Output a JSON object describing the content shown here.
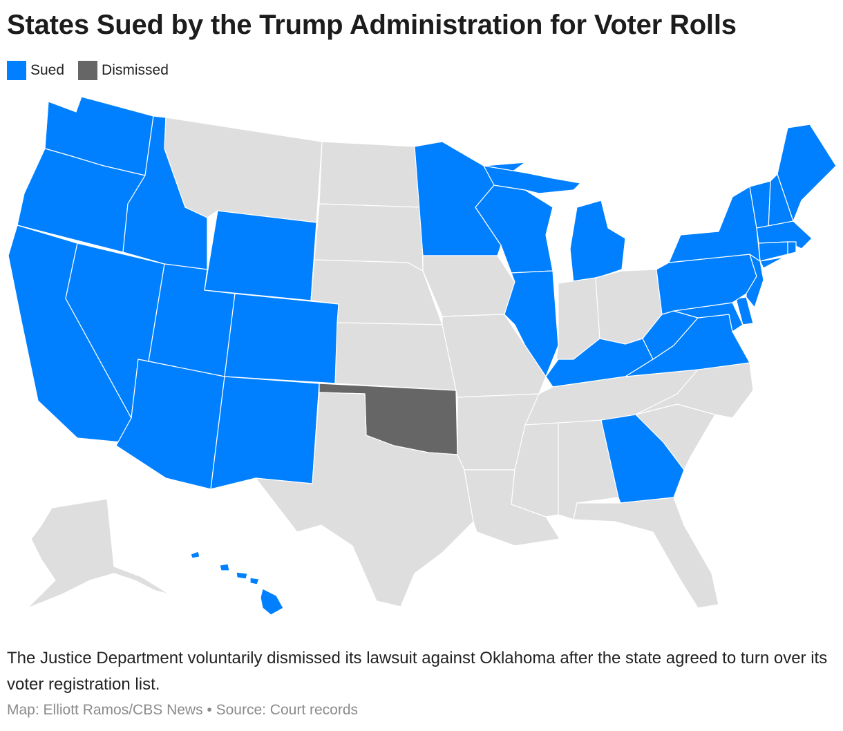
{
  "title": "States Sued by the Trump Administration for Voter Rolls",
  "legend": {
    "items": [
      {
        "label": "Sued",
        "color": "#0080ff"
      },
      {
        "label": "Dismissed",
        "color": "#666666"
      }
    ]
  },
  "colors": {
    "sued": "#0080ff",
    "dismissed": "#666666",
    "none": "#dedede"
  },
  "map": {
    "sued_states": [
      "WA",
      "OR",
      "CA",
      "NV",
      "ID",
      "UT",
      "AZ",
      "WY",
      "CO",
      "NM",
      "MN",
      "WI",
      "MI",
      "IL",
      "KY",
      "WV",
      "VA",
      "MD",
      "DE",
      "NJ",
      "PA",
      "NY",
      "CT",
      "RI",
      "MA",
      "VT",
      "NH",
      "ME",
      "GA",
      "HI"
    ],
    "dismissed_states": [
      "OK"
    ],
    "other_states": [
      "MT",
      "ND",
      "SD",
      "NE",
      "KS",
      "TX",
      "IA",
      "MO",
      "AR",
      "LA",
      "MS",
      "AL",
      "TN",
      "IN",
      "OH",
      "NC",
      "SC",
      "FL",
      "AK"
    ]
  },
  "caption": "The Justice Department voluntarily dismissed its lawsuit against Oklahoma after the state agreed to turn over its voter registration list.",
  "credit": "Map: Elliott Ramos/CBS News • Source: Court records"
}
